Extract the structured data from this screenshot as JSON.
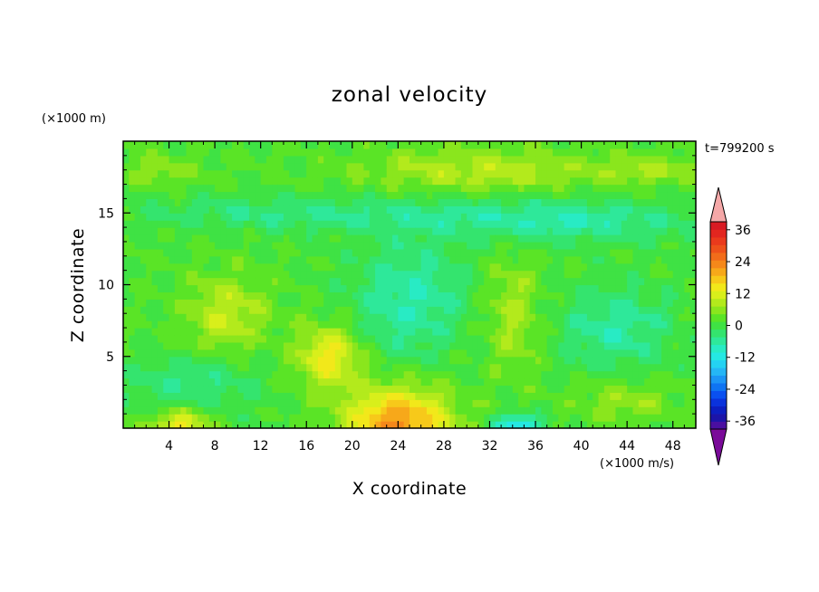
{
  "chart_data": {
    "type": "heatmap",
    "title": "zonal velocity",
    "xlabel": "X coordinate",
    "ylabel": "Z coordinate",
    "x_units": "(×1000 m/s)",
    "y_units": "(×1000 m)",
    "time_label": "t=799200 s",
    "xlim": [
      0,
      50
    ],
    "ylim": [
      0,
      20
    ],
    "x_ticks": [
      "4",
      "8",
      "12",
      "16",
      "20",
      "24",
      "28",
      "32",
      "36",
      "40",
      "44",
      "48"
    ],
    "y_ticks": [
      "5",
      "10",
      "15"
    ],
    "colorbar": {
      "labels": [
        "36",
        "24",
        "12",
        "0",
        "-12",
        "-24",
        "-36"
      ],
      "levels": [
        -42,
        -39,
        -36,
        -33,
        -30,
        -27,
        -24,
        -21,
        -18,
        -15,
        -12,
        -9,
        -6,
        -3,
        0,
        3,
        6,
        9,
        12,
        15,
        18,
        21,
        24,
        27,
        30,
        33,
        36,
        39,
        42
      ],
      "colors": [
        "#7a0a99",
        "#4a0fa0",
        "#1c14a8",
        "#0c1ec0",
        "#0a32dc",
        "#0a50f0",
        "#0f74f2",
        "#1c95f5",
        "#25b6f5",
        "#24d2f2",
        "#25e8e3",
        "#28ebc4",
        "#2ee89a",
        "#34e46e",
        "#3fe244",
        "#5ae426",
        "#8ae61d",
        "#b3ea1c",
        "#d8ef1b",
        "#f2e81a",
        "#f7c91a",
        "#f7a81a",
        "#f5881a",
        "#f26c1a",
        "#ee511a",
        "#ea3a1c",
        "#e2261f",
        "#d81a23",
        "#f5a8a8"
      ]
    },
    "features": [
      {
        "x": 18,
        "z": 5,
        "value": 14,
        "sx": 2.8,
        "sz": 2.2
      },
      {
        "x": 24,
        "z": 0.3,
        "value": 22,
        "sx": 4.5,
        "sz": 2.5
      },
      {
        "x": 5,
        "z": 0.2,
        "value": 14,
        "sx": 2.5,
        "sz": 1.2
      },
      {
        "x": 9,
        "z": 8,
        "value": 9,
        "sx": 3.5,
        "sz": 2.5
      },
      {
        "x": 34,
        "z": 8,
        "value": 7,
        "sx": 2.5,
        "sz": 4
      },
      {
        "x": 25,
        "z": 9,
        "value": -9,
        "sx": 5,
        "sz": 4
      },
      {
        "x": 34.5,
        "z": 0.2,
        "value": -16,
        "sx": 2,
        "sz": 0.8
      },
      {
        "x": 31,
        "z": 18,
        "value": 8,
        "sx": 10,
        "sz": 1.5
      },
      {
        "x": 15,
        "z": 15,
        "value": -6,
        "sx": 14,
        "sz": 1.2
      },
      {
        "x": 38,
        "z": 14.5,
        "value": -9,
        "sx": 12,
        "sz": 1.5
      },
      {
        "x": 43,
        "z": 7,
        "value": -8,
        "sx": 5,
        "sz": 3
      },
      {
        "x": 6,
        "z": 3,
        "value": -6,
        "sx": 6,
        "sz": 2
      },
      {
        "x": 46,
        "z": 18,
        "value": 6,
        "sx": 5,
        "sz": 1
      },
      {
        "x": 3,
        "z": 18,
        "value": 5,
        "sx": 4,
        "sz": 1
      },
      {
        "x": 44,
        "z": 2,
        "value": 6,
        "sx": 4,
        "sz": 1.5
      }
    ]
  }
}
